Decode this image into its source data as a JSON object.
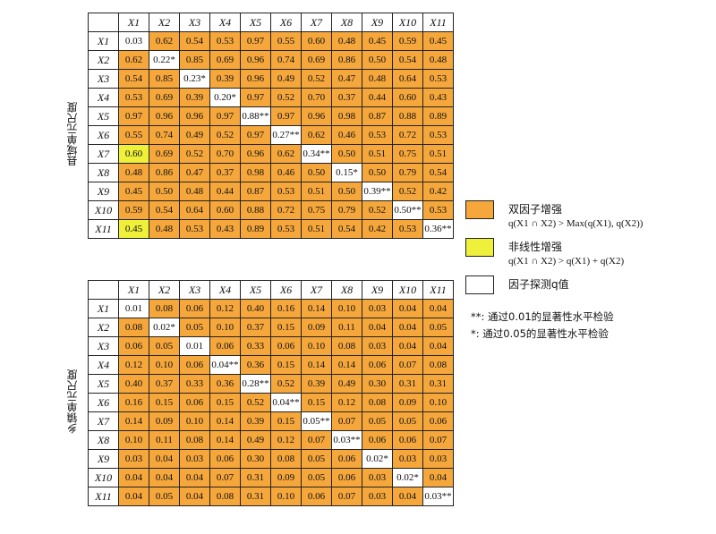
{
  "chart_data": [
    {
      "type": "table",
      "panel_label": "县域单元尺度",
      "columns": [
        "X1",
        "X2",
        "X3",
        "X4",
        "X5",
        "X6",
        "X7",
        "X8",
        "X9",
        "X10",
        "X11"
      ],
      "rows": [
        "X1",
        "X2",
        "X3",
        "X4",
        "X5",
        "X6",
        "X7",
        "X8",
        "X9",
        "X10",
        "X11"
      ],
      "values": [
        [
          "0.03",
          "0.62",
          "0.54",
          "0.53",
          "0.97",
          "0.55",
          "0.60",
          "0.48",
          "0.45",
          "0.59",
          "0.45"
        ],
        [
          "0.62",
          "0.22*",
          "0.85",
          "0.69",
          "0.96",
          "0.74",
          "0.69",
          "0.86",
          "0.50",
          "0.54",
          "0.48"
        ],
        [
          "0.54",
          "0.85",
          "0.23*",
          "0.39",
          "0.96",
          "0.49",
          "0.52",
          "0.47",
          "0.48",
          "0.64",
          "0.53"
        ],
        [
          "0.53",
          "0.69",
          "0.39",
          "0.20*",
          "0.97",
          "0.52",
          "0.70",
          "0.37",
          "0.44",
          "0.60",
          "0.43"
        ],
        [
          "0.97",
          "0.96",
          "0.96",
          "0.97",
          "0.88**",
          "0.97",
          "0.96",
          "0.98",
          "0.87",
          "0.88",
          "0.89"
        ],
        [
          "0.55",
          "0.74",
          "0.49",
          "0.52",
          "0.97",
          "0.27**",
          "0.62",
          "0.46",
          "0.53",
          "0.72",
          "0.53"
        ],
        [
          "0.60",
          "0.69",
          "0.52",
          "0.70",
          "0.96",
          "0.62",
          "0.34**",
          "0.50",
          "0.51",
          "0.75",
          "0.51"
        ],
        [
          "0.48",
          "0.86",
          "0.47",
          "0.37",
          "0.98",
          "0.46",
          "0.50",
          "0.15*",
          "0.50",
          "0.79",
          "0.54"
        ],
        [
          "0.45",
          "0.50",
          "0.48",
          "0.44",
          "0.87",
          "0.53",
          "0.51",
          "0.50",
          "0.39**",
          "0.52",
          "0.42"
        ],
        [
          "0.59",
          "0.54",
          "0.64",
          "0.60",
          "0.88",
          "0.72",
          "0.75",
          "0.79",
          "0.52",
          "0.50**",
          "0.53"
        ],
        [
          "0.45",
          "0.48",
          "0.53",
          "0.43",
          "0.89",
          "0.53",
          "0.51",
          "0.54",
          "0.42",
          "0.53",
          "0.36**"
        ]
      ],
      "types": [
        "WOOOOOOOOOO",
        "OWOOOOOOOOO",
        "OOWOOOOOOOO",
        "OOOWOOOOOOO",
        "OOOOWOOOOOO",
        "OOOOOWOOOOO",
        "YOOOOOWOOOO",
        "OOOOOOOWOOO",
        "OOOOOOOOWOO",
        "OOOOOOOOOWO",
        "YOOOOOOOOOW"
      ]
    },
    {
      "type": "table",
      "panel_label": "乡镇单元尺度",
      "columns": [
        "X1",
        "X2",
        "X3",
        "X4",
        "X5",
        "X6",
        "X7",
        "X8",
        "X9",
        "X10",
        "X11"
      ],
      "rows": [
        "X1",
        "X2",
        "X3",
        "X4",
        "X5",
        "X6",
        "X7",
        "X8",
        "X9",
        "X10",
        "X11"
      ],
      "values": [
        [
          "0.01",
          "0.08",
          "0.06",
          "0.12",
          "0.40",
          "0.16",
          "0.14",
          "0.10",
          "0.03",
          "0.04",
          "0.04"
        ],
        [
          "0.08",
          "0.02*",
          "0.05",
          "0.10",
          "0.37",
          "0.15",
          "0.09",
          "0.11",
          "0.04",
          "0.04",
          "0.05"
        ],
        [
          "0.06",
          "0.05",
          "0.01",
          "0.06",
          "0.33",
          "0.06",
          "0.10",
          "0.08",
          "0.03",
          "0.04",
          "0.04"
        ],
        [
          "0.12",
          "0.10",
          "0.06",
          "0.04**",
          "0.36",
          "0.15",
          "0.14",
          "0.14",
          "0.06",
          "0.07",
          "0.08"
        ],
        [
          "0.40",
          "0.37",
          "0.33",
          "0.36",
          "0.28**",
          "0.52",
          "0.39",
          "0.49",
          "0.30",
          "0.31",
          "0.31"
        ],
        [
          "0.16",
          "0.15",
          "0.06",
          "0.15",
          "0.52",
          "0.04**",
          "0.15",
          "0.12",
          "0.08",
          "0.09",
          "0.10"
        ],
        [
          "0.14",
          "0.09",
          "0.10",
          "0.14",
          "0.39",
          "0.15",
          "0.05**",
          "0.07",
          "0.05",
          "0.05",
          "0.06"
        ],
        [
          "0.10",
          "0.11",
          "0.08",
          "0.14",
          "0.49",
          "0.12",
          "0.07",
          "0.03**",
          "0.06",
          "0.06",
          "0.07"
        ],
        [
          "0.03",
          "0.04",
          "0.03",
          "0.06",
          "0.30",
          "0.08",
          "0.05",
          "0.06",
          "0.02*",
          "0.03",
          "0.03"
        ],
        [
          "0.04",
          "0.04",
          "0.04",
          "0.07",
          "0.31",
          "0.09",
          "0.05",
          "0.06",
          "0.03",
          "0.02*",
          "0.04"
        ],
        [
          "0.04",
          "0.05",
          "0.04",
          "0.08",
          "0.31",
          "0.10",
          "0.06",
          "0.07",
          "0.03",
          "0.04",
          "0.03**"
        ]
      ],
      "types": [
        "WOOOOOOOOOO",
        "OWOOOOOOOOO",
        "OOWOOOOOOOO",
        "OOOWOOOOOOO",
        "OOOOWOOOOOO",
        "OOOOOWOOOOO",
        "OOOOOOWOOOO",
        "OOOOOOOWOOO",
        "OOOOOOOOWOO",
        "OOOOOOOOOWO",
        "OOOOOOOOOOW"
      ]
    }
  ],
  "legend": [
    {
      "key": "O",
      "color": "#f5a73c",
      "label": "双因子增强",
      "formula": "q(X1 ∩ X2) > Max(q(X1), q(X2))"
    },
    {
      "key": "Y",
      "color": "#eef03a",
      "label": "非线性增强",
      "formula": "q(X1 ∩ X2) > q(X1) + q(X2)"
    },
    {
      "key": "W",
      "color": "#ffffff",
      "label": "因子探测q值",
      "formula": ""
    }
  ],
  "notes": [
    "**: 通过0.01的显著性水平检验",
    "*: 通过0.05的显著性水平检验"
  ]
}
